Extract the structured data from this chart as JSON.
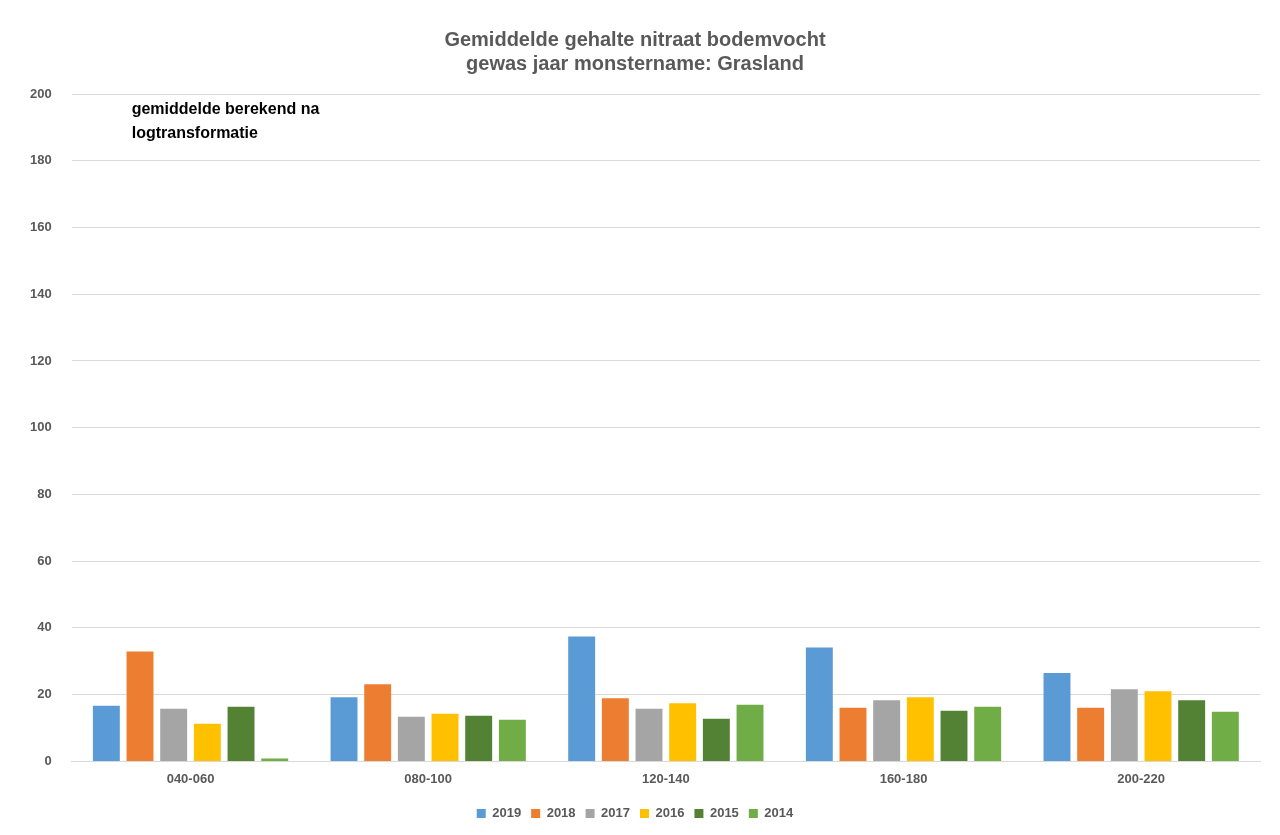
{
  "chart_data": {
    "type": "bar",
    "title": "Gemiddelde gehalte nitraat bodemvocht\ngewas jaar monstername: Grasland",
    "categories": [
      "040-060",
      "080-100",
      "120-140",
      "160-180",
      "200-220"
    ],
    "series": [
      {
        "name": "2019",
        "color": "#5b9bd5",
        "values": [
          16.7,
          19.2,
          37.4,
          34.1,
          26.5
        ]
      },
      {
        "name": "2018",
        "color": "#ed7d31",
        "values": [
          32.9,
          23.1,
          18.9,
          16.1,
          16.1
        ]
      },
      {
        "name": "2017",
        "color": "#a5a5a5",
        "values": [
          15.8,
          13.4,
          15.8,
          18.3,
          21.6
        ]
      },
      {
        "name": "2016",
        "color": "#ffc000",
        "values": [
          11.3,
          14.3,
          17.4,
          19.2,
          21
        ]
      },
      {
        "name": "2015",
        "color": "#548235",
        "values": [
          16.4,
          13.7,
          12.8,
          15.2,
          18.3
        ]
      },
      {
        "name": "2014",
        "color": "#70ad47",
        "values": [
          0.9,
          12.5,
          17,
          16.4,
          14.9
        ]
      }
    ],
    "ylim": [
      0,
      200
    ],
    "yticks": [
      0,
      20,
      40,
      60,
      80,
      100,
      120,
      140,
      160,
      180,
      200
    ],
    "grid": "y",
    "legend": "bottom",
    "annotations": [
      "gemiddelde berekend na\nlogtransformatie"
    ]
  }
}
